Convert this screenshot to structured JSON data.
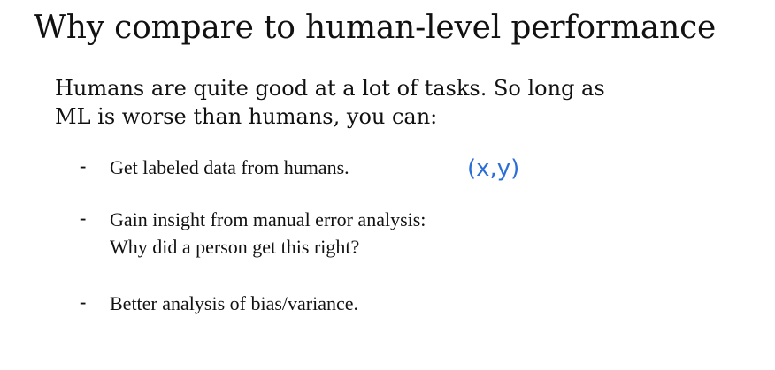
{
  "slide": {
    "title": "Why compare to human-level performance",
    "intro": {
      "line1": "Humans are quite good at a lot of tasks. So long as",
      "line2": "ML is worse than humans, you can:"
    },
    "bullets": [
      {
        "marker": "-",
        "lines": [
          "Get labeled data from humans."
        ]
      },
      {
        "marker": "-",
        "lines": [
          "Gain insight from manual error analysis:",
          "Why did a person get this right?"
        ]
      },
      {
        "marker": "-",
        "lines": [
          "Better analysis of bias/variance."
        ]
      }
    ],
    "annotation": {
      "text": "(x,y)",
      "color": "#2b6fd6"
    }
  }
}
